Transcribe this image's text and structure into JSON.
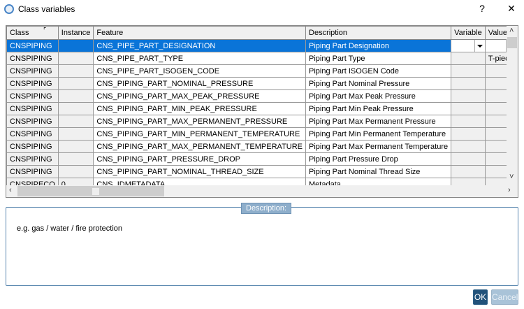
{
  "window": {
    "title": "Class variables",
    "help": "?",
    "close": "✕"
  },
  "table": {
    "columns": [
      "Class",
      "Instance",
      "Feature",
      "Description",
      "Variable",
      "Value"
    ],
    "rows": [
      [
        "CNSPIPING",
        "",
        "CNS_PIPE_PART_DESIGNATION",
        "Piping Part Designation",
        "",
        ""
      ],
      [
        "CNSPIPING",
        "",
        "CNS_PIPE_PART_TYPE",
        "Piping Part Type",
        "",
        "T-piece"
      ],
      [
        "CNSPIPING",
        "",
        "CNS_PIPE_PART_ISOGEN_CODE",
        "Piping Part ISOGEN Code",
        "",
        ""
      ],
      [
        "CNSPIPING",
        "",
        "CNS_PIPING_PART_NOMINAL_PRESSURE",
        "Piping Part Nominal Pressure",
        "",
        ""
      ],
      [
        "CNSPIPING",
        "",
        "CNS_PIPING_PART_MAX_PEAK_PRESSURE",
        "Piping Part Max Peak Pressure",
        "",
        ""
      ],
      [
        "CNSPIPING",
        "",
        "CNS_PIPING_PART_MIN_PEAK_PRESSURE",
        "Piping Part Min Peak Pressure",
        "",
        ""
      ],
      [
        "CNSPIPING",
        "",
        "CNS_PIPING_PART_MAX_PERMANENT_PRESSURE",
        "Piping Part Max Permanent Pressure",
        "",
        ""
      ],
      [
        "CNSPIPING",
        "",
        "CNS_PIPING_PART_MIN_PERMANENT_TEMPERATURE",
        "Piping Part Min Permanent Temperature",
        "",
        ""
      ],
      [
        "CNSPIPING",
        "",
        "CNS_PIPING_PART_MAX_PERMANENT_TEMPERATURE",
        "Piping Part Max Permanent Temperature",
        "",
        ""
      ],
      [
        "CNSPIPING",
        "",
        "CNS_PIPING_PART_PRESSURE_DROP",
        "Piping Part Pressure Drop",
        "",
        ""
      ],
      [
        "CNSPIPING",
        "",
        "CNS_PIPING_PART_NOMINAL_THREAD_SIZE",
        "Piping Part Nominal Thread Size",
        "",
        ""
      ],
      [
        "CNSPIPECO",
        "0",
        "CNS_IDMETADATA",
        "Metadata",
        "",
        ""
      ]
    ],
    "selected_row": 0
  },
  "description": {
    "label": "Description:",
    "text": "e.g. gas / water / fire protection"
  },
  "buttons": {
    "ok": "OK",
    "cancel": "Cancel"
  },
  "colors": {
    "selection": "#0a74d8",
    "ok_button": "#22527a",
    "legend": "#8eaecb"
  }
}
